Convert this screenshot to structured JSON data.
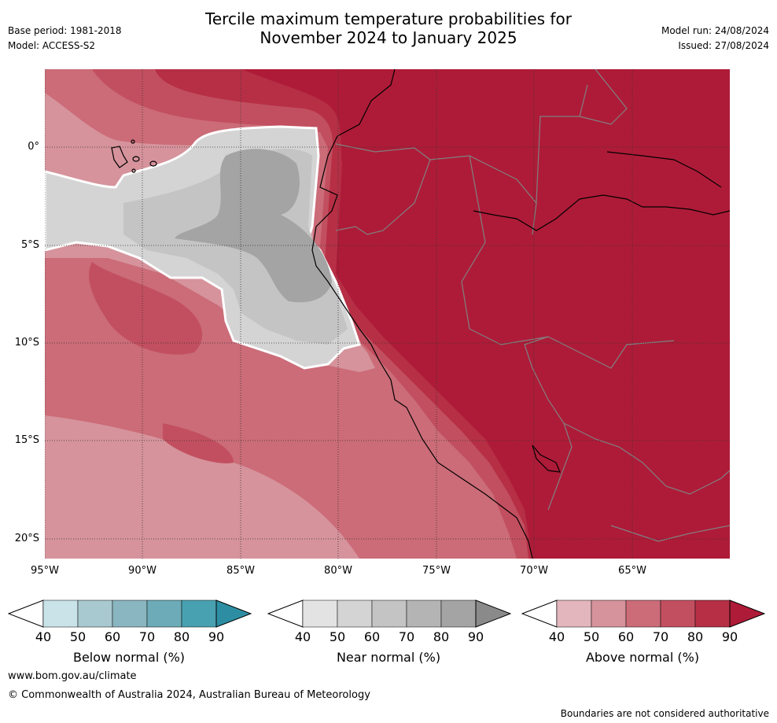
{
  "title_line1": "Tercile maximum temperature probabilities for",
  "title_line2": "November 2024 to January 2025",
  "base_period": "Base period: 1981-2018",
  "model": "Model: ACCESS-S2",
  "model_run": "Model run: 24/08/2024",
  "issued": "Issued: 27/08/2024",
  "map": {
    "y_ticks": [
      "0°",
      "5°S",
      "10°S",
      "15°S",
      "20°S"
    ],
    "x_ticks": [
      "95°W",
      "90°W",
      "85°W",
      "80°W",
      "75°W",
      "70°W",
      "65°W"
    ]
  },
  "colorbars": [
    {
      "label": "Below normal (%)",
      "ticks": [
        "40",
        "50",
        "60",
        "70",
        "80",
        "90"
      ],
      "colors": [
        "#c9e3e8",
        "#a8c9cf",
        "#8ab6c1",
        "#6dabb8",
        "#48a1b1",
        "#2d8ea3"
      ]
    },
    {
      "label": "Near normal (%)",
      "ticks": [
        "40",
        "50",
        "60",
        "70",
        "80",
        "90"
      ],
      "colors": [
        "#e3e3e3",
        "#d4d4d4",
        "#c4c4c4",
        "#b4b4b4",
        "#a4a4a4",
        "#8a8a8a"
      ]
    },
    {
      "label": "Above normal (%)",
      "ticks": [
        "40",
        "50",
        "60",
        "70",
        "80",
        "90"
      ],
      "colors": [
        "#e2b6bc",
        "#d6939c",
        "#cb6c78",
        "#c24f5f",
        "#b62f45",
        "#ae1b38"
      ]
    }
  ],
  "footer": {
    "url": "www.bom.gov.au/climate",
    "copyright": "© Commonwealth of Australia 2024, Australian Bureau of Meteorology",
    "disclaimer": "Boundaries are not considered authoritative"
  }
}
